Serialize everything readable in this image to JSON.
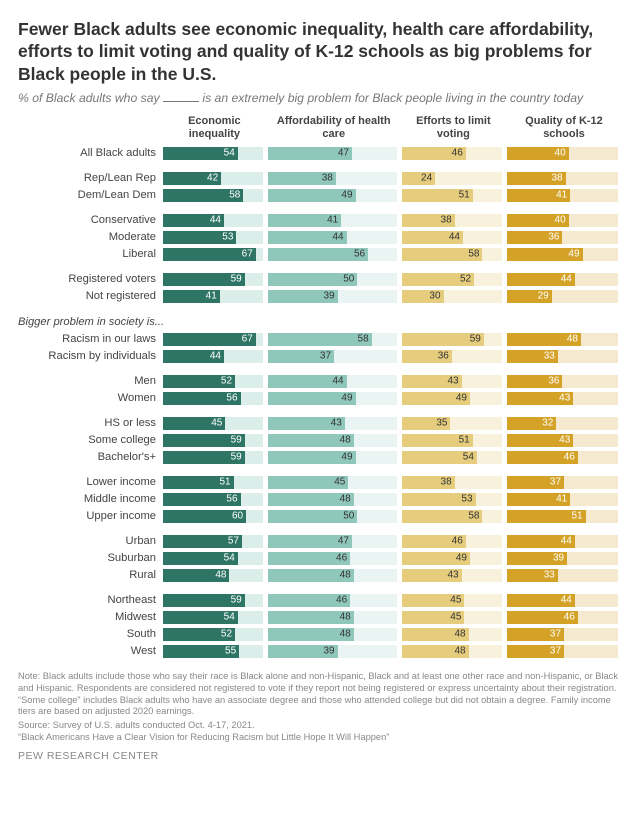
{
  "title": "Fewer Black adults see economic inequality, health care affordability, efforts to limit voting and quality of K-12 schools as big problems for Black people in the U.S.",
  "subtitle_pre": "% of Black adults who say ",
  "subtitle_post": " is an extremely big problem for Black people living in the country today",
  "columns": [
    {
      "key": "econ",
      "label": "Economic inequality",
      "scale": 72,
      "valColor": "w"
    },
    {
      "key": "hc",
      "label": "Affordability of health care",
      "scale": 72,
      "valColor": "d"
    },
    {
      "key": "vot",
      "label": "Efforts to limit voting",
      "scale": 72,
      "valColor": "d"
    },
    {
      "key": "k12",
      "label": "Quality of K-12 schools",
      "scale": 72,
      "valColor": "w"
    }
  ],
  "section_header": "Bigger problem in society is...",
  "rows": [
    {
      "label": "All Black adults",
      "v": [
        54,
        47,
        46,
        40
      ]
    },
    {
      "gap": true
    },
    {
      "label": "Rep/Lean Rep",
      "v": [
        42,
        38,
        24,
        38
      ]
    },
    {
      "label": "Dem/Lean Dem",
      "v": [
        58,
        49,
        51,
        41
      ]
    },
    {
      "gap": true
    },
    {
      "label": "Conservative",
      "v": [
        44,
        41,
        38,
        40
      ]
    },
    {
      "label": "Moderate",
      "v": [
        53,
        44,
        44,
        36
      ]
    },
    {
      "label": "Liberal",
      "v": [
        67,
        56,
        58,
        49
      ]
    },
    {
      "gap": true
    },
    {
      "label": "Registered voters",
      "v": [
        59,
        50,
        52,
        44
      ]
    },
    {
      "label": "Not registered",
      "v": [
        41,
        39,
        30,
        29
      ]
    },
    {
      "gap": true
    },
    {
      "section": true
    },
    {
      "label": "Racism in our laws",
      "v": [
        67,
        58,
        59,
        48
      ]
    },
    {
      "label": "Racism by individuals",
      "v": [
        44,
        37,
        36,
        33
      ]
    },
    {
      "gap": true
    },
    {
      "label": "Men",
      "v": [
        52,
        44,
        43,
        36
      ]
    },
    {
      "label": "Women",
      "v": [
        56,
        49,
        49,
        43
      ]
    },
    {
      "gap": true
    },
    {
      "label": "HS or less",
      "v": [
        45,
        43,
        35,
        32
      ]
    },
    {
      "label": "Some college",
      "v": [
        59,
        48,
        51,
        43
      ]
    },
    {
      "label": "Bachelor's+",
      "v": [
        59,
        49,
        54,
        46
      ]
    },
    {
      "gap": true
    },
    {
      "label": "Lower income",
      "v": [
        51,
        45,
        38,
        37
      ]
    },
    {
      "label": "Middle income",
      "v": [
        56,
        48,
        53,
        41
      ]
    },
    {
      "label": "Upper income",
      "v": [
        60,
        50,
        58,
        51
      ]
    },
    {
      "gap": true
    },
    {
      "label": "Urban",
      "v": [
        57,
        47,
        46,
        44
      ]
    },
    {
      "label": "Suburban",
      "v": [
        54,
        46,
        49,
        39
      ]
    },
    {
      "label": "Rural",
      "v": [
        48,
        48,
        43,
        33
      ]
    },
    {
      "gap": true
    },
    {
      "label": "Northeast",
      "v": [
        59,
        46,
        45,
        44
      ]
    },
    {
      "label": "Midwest",
      "v": [
        54,
        48,
        45,
        46
      ]
    },
    {
      "label": "South",
      "v": [
        52,
        48,
        48,
        37
      ]
    },
    {
      "label": "West",
      "v": [
        55,
        39,
        48,
        37
      ]
    }
  ],
  "note": "Note: Black adults include those who say their race is Black alone and non-Hispanic, Black and at least one other race and non-Hispanic, or Black and Hispanic. Respondents are considered not registered to vote if they report not being registered or express uncertainty about their registration. “Some college” includes Black adults who have an associate degree and those who attended college but did not obtain a degree. Family income tiers are based on adjusted 2020 earnings.",
  "source": "Source: Survey of U.S. adults conducted Oct. 4-17, 2021.",
  "quote": "“Black Americans Have a Clear Vision for Reducing Racism but Little Hope It Will Happen”",
  "footer": "PEW RESEARCH CENTER"
}
